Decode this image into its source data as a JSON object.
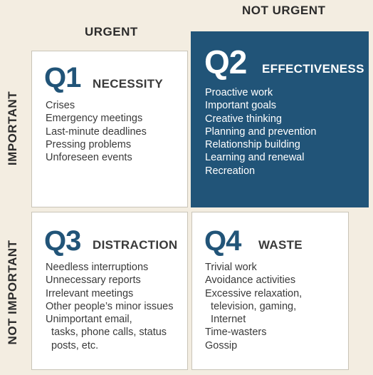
{
  "columns": {
    "urgent": "URGENT",
    "not_urgent": "NOT URGENT"
  },
  "rows": {
    "important": "IMPORTANT",
    "not_important": "NOT IMPORTANT"
  },
  "quadrants": {
    "q1": {
      "code": "Q1",
      "name": "NECESSITY",
      "items": [
        "Crises",
        "Emergency meetings",
        "Last-minute deadlines",
        "Pressing problems",
        "Unforeseen events"
      ]
    },
    "q2": {
      "code": "Q2",
      "name": "EFFECTIVENESS",
      "background_color": "#215478",
      "items": [
        "Proactive work",
        "Important goals",
        "Creative thinking",
        "Planning and prevention",
        "Relationship building",
        "Learning and renewal",
        "Recreation"
      ]
    },
    "q3": {
      "code": "Q3",
      "name": "DISTRACTION",
      "items": [
        "Needless interruptions",
        "Unnecessary reports",
        "Irrelevant meetings",
        "Other people’s minor issues",
        "Unimportant email,",
        "  tasks, phone calls, status",
        "  posts, etc."
      ]
    },
    "q4": {
      "code": "Q4",
      "name": "WASTE",
      "items": [
        "Trivial work",
        "Avoidance activities",
        "Excessive relaxation,",
        "  television, gaming,",
        "  Internet",
        "Time-wasters",
        "Gossip"
      ]
    }
  }
}
